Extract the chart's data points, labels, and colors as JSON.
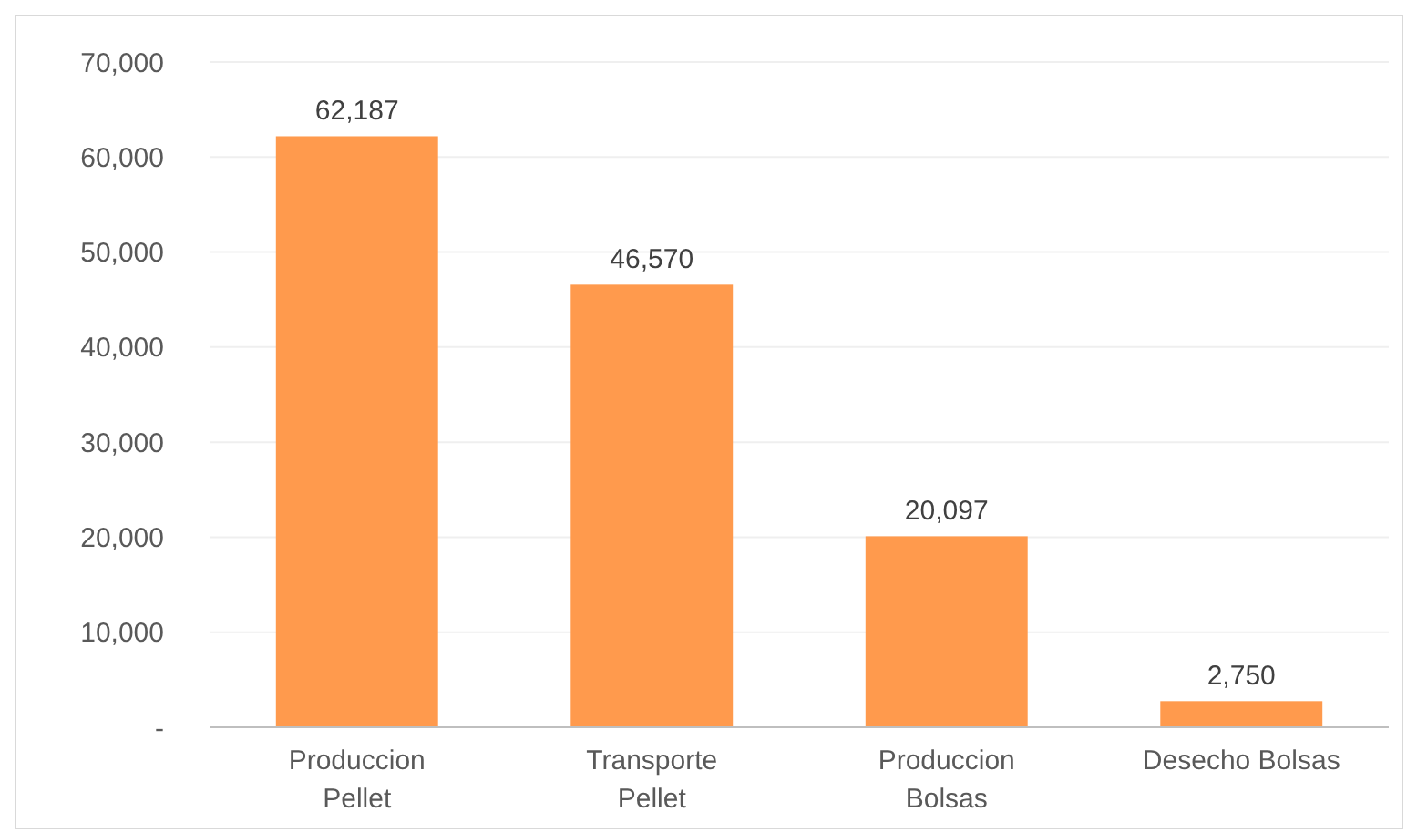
{
  "chart_data": {
    "type": "bar",
    "categories": [
      "Produccion Pellet",
      "Transporte Pellet",
      "Produccion Bolsas",
      "Desecho Bolsas"
    ],
    "values": [
      62187,
      46570,
      20097,
      2750
    ],
    "color": "#ff9a4d",
    "ylim": [
      0,
      70000
    ],
    "yticks": [
      {
        "value": 0,
        "label": "-"
      },
      {
        "value": 10000,
        "label": "10,000"
      },
      {
        "value": 20000,
        "label": "20,000"
      },
      {
        "value": 30000,
        "label": "30,000"
      },
      {
        "value": 40000,
        "label": "40,000"
      },
      {
        "value": 50000,
        "label": "50,000"
      },
      {
        "value": 60000,
        "label": "60,000"
      },
      {
        "value": 70000,
        "label": "70,000"
      }
    ],
    "value_labels": [
      "62,187",
      "46,570",
      "20,097",
      "2,750"
    ],
    "grid": "y"
  }
}
